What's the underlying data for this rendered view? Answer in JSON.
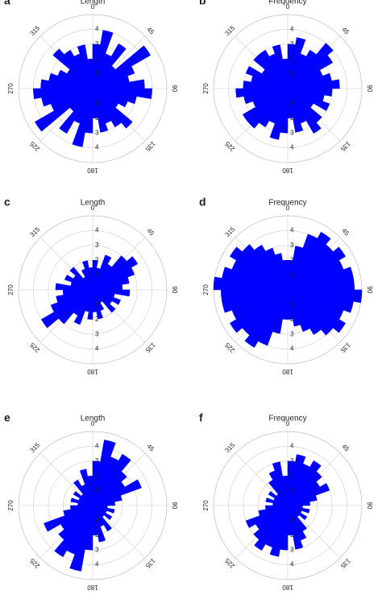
{
  "chart_data": [
    {
      "type": "rose",
      "label": "a",
      "title": "Length",
      "color": "#0000ff",
      "rlim": [
        0,
        5
      ],
      "rticks": [
        1,
        2,
        3,
        4
      ],
      "thetaticks": [
        0,
        45,
        90,
        135,
        180,
        225,
        270,
        315
      ],
      "values": [
        3,
        4,
        2.5,
        3.5,
        2,
        4.5,
        3,
        2.5,
        3.5,
        4,
        3,
        2.5,
        2,
        3.5,
        3,
        2.5,
        3,
        2,
        3,
        4,
        2.5,
        3.5,
        2,
        4.5,
        3,
        3.5,
        4,
        3.5,
        3,
        2.5,
        2,
        3.5,
        3,
        2.5,
        3,
        2
      ]
    },
    {
      "type": "rose",
      "label": "b",
      "title": "Frequency",
      "color": "#0000ff",
      "rlim": [
        0,
        5
      ],
      "rticks": [
        1,
        2,
        3,
        4
      ],
      "thetaticks": [
        0,
        45,
        90,
        135,
        180,
        225,
        270,
        315
      ],
      "values": [
        3,
        3.5,
        2.5,
        3,
        4,
        3.5,
        2.5,
        3,
        3.5,
        3,
        2.5,
        3,
        2,
        3,
        3.5,
        2.5,
        3,
        2,
        3,
        3.5,
        2.5,
        3,
        3.5,
        3.5,
        2.5,
        3,
        3.5,
        3,
        2.5,
        3,
        2,
        3,
        3,
        2.5,
        3,
        2
      ]
    },
    {
      "type": "rose",
      "label": "c",
      "title": "Length",
      "color": "#0000ff",
      "rlim": [
        0,
        5
      ],
      "rticks": [
        1,
        2,
        3,
        4
      ],
      "thetaticks": [
        0,
        45,
        90,
        135,
        180,
        225,
        270,
        315
      ],
      "values": [
        2,
        1.5,
        2.5,
        2,
        3,
        3.5,
        3,
        2.5,
        2,
        2.5,
        1.5,
        2,
        1.5,
        2,
        1,
        1.5,
        2,
        1.5,
        2,
        1.5,
        2.5,
        2,
        3,
        4,
        3,
        2.5,
        2,
        2.5,
        1.5,
        2,
        1.5,
        2,
        1,
        1.5,
        2,
        1.5
      ]
    },
    {
      "type": "rose",
      "label": "d",
      "title": "Frequency",
      "color": "#0000ff",
      "rlim": [
        0,
        5
      ],
      "rticks": [
        1,
        2,
        3,
        4
      ],
      "thetaticks": [
        0,
        45,
        90,
        135,
        180,
        225,
        270,
        315
      ],
      "values": [
        2,
        3,
        4,
        4.5,
        4,
        4.5,
        4,
        4.5,
        4.5,
        5,
        4.5,
        4,
        4.5,
        4,
        3.5,
        3,
        2.5,
        2,
        2,
        3,
        4,
        4.5,
        4,
        4.5,
        4,
        4.5,
        4.5,
        5,
        4.5,
        4,
        4.5,
        4,
        3.5,
        3,
        2.5,
        2
      ]
    },
    {
      "type": "rose",
      "label": "e",
      "title": "Length",
      "color": "#0000ff",
      "rlim": [
        0,
        5
      ],
      "rticks": [
        1,
        2,
        3,
        4
      ],
      "thetaticks": [
        0,
        45,
        90,
        135,
        180,
        225,
        270,
        315
      ],
      "values": [
        3,
        4.5,
        3.5,
        4,
        3,
        2.5,
        3.5,
        2,
        1.5,
        1,
        1.5,
        1,
        1.5,
        1,
        2,
        1.5,
        2.5,
        2,
        3,
        4.5,
        3.5,
        4,
        3,
        2.5,
        3.5,
        2,
        1.5,
        1,
        1.5,
        1,
        1.5,
        1,
        2,
        1.5,
        2.5,
        2
      ]
    },
    {
      "type": "rose",
      "label": "f",
      "title": "Frequency",
      "color": "#0000ff",
      "rlim": [
        0,
        5
      ],
      "rticks": [
        1,
        2,
        3,
        4
      ],
      "thetaticks": [
        0,
        45,
        90,
        135,
        180,
        225,
        270,
        315
      ],
      "values": [
        3,
        3.5,
        3,
        3.5,
        3,
        2.5,
        3,
        2,
        1.5,
        1,
        1.5,
        1,
        1.5,
        1,
        2,
        2.5,
        3,
        2,
        3,
        3.5,
        3,
        3.5,
        3,
        2.5,
        3,
        2,
        1.5,
        1,
        1.5,
        1,
        1.5,
        1,
        2,
        2.5,
        3,
        2
      ]
    }
  ]
}
